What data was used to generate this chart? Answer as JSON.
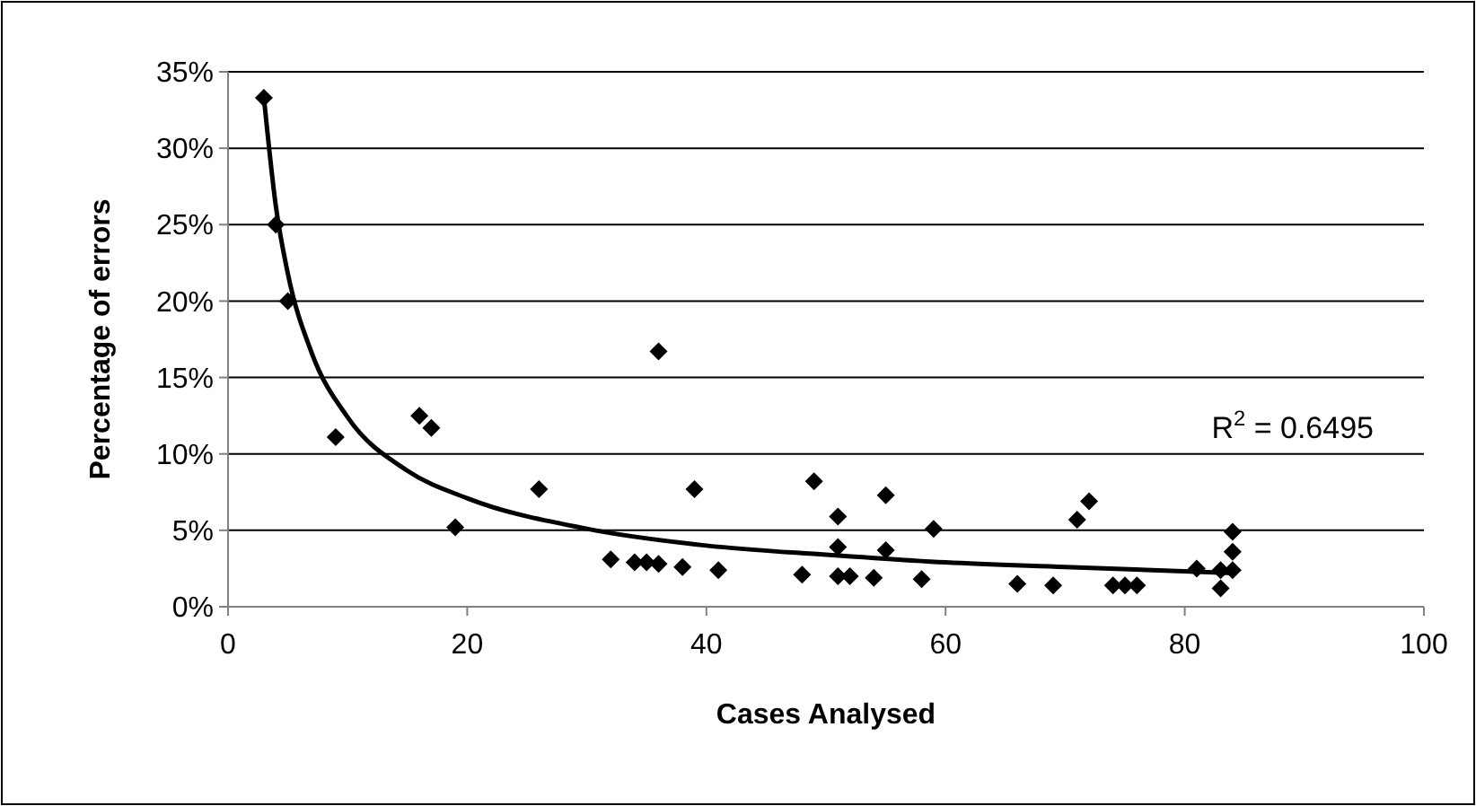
{
  "chart_data": {
    "type": "scatter",
    "xlabel": "Cases Analysed",
    "ylabel": "Percentage of errors",
    "xlim": [
      0,
      100
    ],
    "xticks": [
      0,
      20,
      40,
      60,
      80,
      100
    ],
    "ylim": [
      0,
      35
    ],
    "yticks": [
      {
        "value": 0,
        "label": "0%"
      },
      {
        "value": 5,
        "label": "5%"
      },
      {
        "value": 10,
        "label": "10%"
      },
      {
        "value": 15,
        "label": "15%"
      },
      {
        "value": 20,
        "label": "20%"
      },
      {
        "value": 25,
        "label": "25%"
      },
      {
        "value": 30,
        "label": "30%"
      },
      {
        "value": 35,
        "label": "35%"
      }
    ],
    "grid": "y",
    "marker": "diamond",
    "annotations": [
      "R$^{2}$ = 0.6495"
    ],
    "series": [
      {
        "color": "#000000",
        "x": [
          3,
          4,
          5,
          9,
          16,
          17,
          19,
          26,
          32,
          34,
          35,
          36,
          36,
          38,
          39,
          41,
          48,
          49,
          51,
          51,
          51,
          52,
          54,
          55,
          55,
          58,
          59,
          66,
          69,
          71,
          72,
          74,
          75,
          76,
          81,
          83,
          83,
          84,
          84,
          84
        ],
        "values": [
          33.3,
          25,
          20,
          11.1,
          12.5,
          11.7,
          5.2,
          7.7,
          3.1,
          2.9,
          2.9,
          2.8,
          16.7,
          2.6,
          7.7,
          2.4,
          2.1,
          8.2,
          5.9,
          3.9,
          2.0,
          2.0,
          1.9,
          7.3,
          3.7,
          1.8,
          5.1,
          1.5,
          1.4,
          5.7,
          6.9,
          1.4,
          1.4,
          1.4,
          2.5,
          2.4,
          1.2,
          4.9,
          3.6,
          2.4
        ]
      },
      {
        "type": "line",
        "color": "#000000",
        "marker": "none",
        "x": [
          3,
          4,
          5,
          7,
          10,
          15,
          20,
          30,
          40,
          50,
          60,
          70,
          84
        ],
        "values": [
          33.3,
          26.2,
          21.8,
          16.6,
          12.4,
          8.9,
          7.1,
          5.1,
          4.0,
          3.4,
          2.9,
          2.6,
          2.2
        ]
      }
    ]
  }
}
